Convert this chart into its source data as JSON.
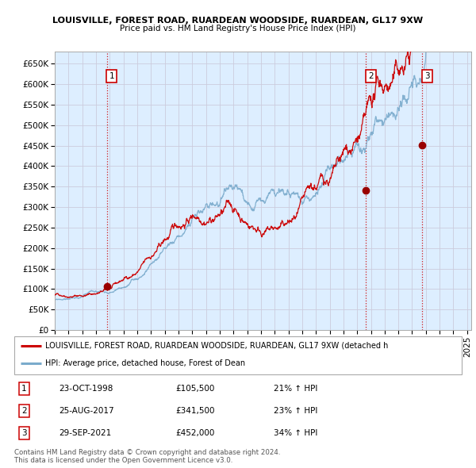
{
  "title1": "LOUISVILLE, FOREST ROAD, RUARDEAN WOODSIDE, RUARDEAN, GL17 9XW",
  "title2": "Price paid vs. HM Land Registry's House Price Index (HPI)",
  "xlim_start": 1995.0,
  "xlim_end": 2025.3,
  "ylim_min": 0,
  "ylim_max": 680000,
  "yticks": [
    0,
    50000,
    100000,
    150000,
    200000,
    250000,
    300000,
    350000,
    400000,
    450000,
    500000,
    550000,
    600000,
    650000
  ],
  "ytick_labels": [
    "£0",
    "£50K",
    "£100K",
    "£150K",
    "£200K",
    "£250K",
    "£300K",
    "£350K",
    "£400K",
    "£450K",
    "£500K",
    "£550K",
    "£600K",
    "£650K"
  ],
  "xtick_years": [
    1995,
    1996,
    1997,
    1998,
    1999,
    2000,
    2001,
    2002,
    2003,
    2004,
    2005,
    2006,
    2007,
    2008,
    2009,
    2010,
    2011,
    2012,
    2013,
    2014,
    2015,
    2016,
    2017,
    2018,
    2019,
    2020,
    2021,
    2022,
    2023,
    2024,
    2025
  ],
  "sale_dates": [
    1998.81,
    2017.65,
    2021.75
  ],
  "sale_prices": [
    105500,
    341500,
    452000
  ],
  "sale_labels": [
    "1",
    "2",
    "3"
  ],
  "vline_color": "#cc0000",
  "marker_color": "#990000",
  "red_line_color": "#cc0000",
  "blue_line_color": "#7aabcc",
  "plot_bg_color": "#ddeeff",
  "legend_label_red": "LOUISVILLE, FOREST ROAD, RUARDEAN WOODSIDE, RUARDEAN, GL17 9XW (detached h",
  "legend_label_blue": "HPI: Average price, detached house, Forest of Dean",
  "table_rows": [
    [
      "1",
      "23-OCT-1998",
      "£105,500",
      "21% ↑ HPI"
    ],
    [
      "2",
      "25-AUG-2017",
      "£341,500",
      "23% ↑ HPI"
    ],
    [
      "3",
      "29-SEP-2021",
      "£452,000",
      "34% ↑ HPI"
    ]
  ],
  "footer_text": "Contains HM Land Registry data © Crown copyright and database right 2024.\nThis data is licensed under the Open Government Licence v3.0.",
  "background_color": "#ffffff",
  "grid_color": "#ccccdd"
}
